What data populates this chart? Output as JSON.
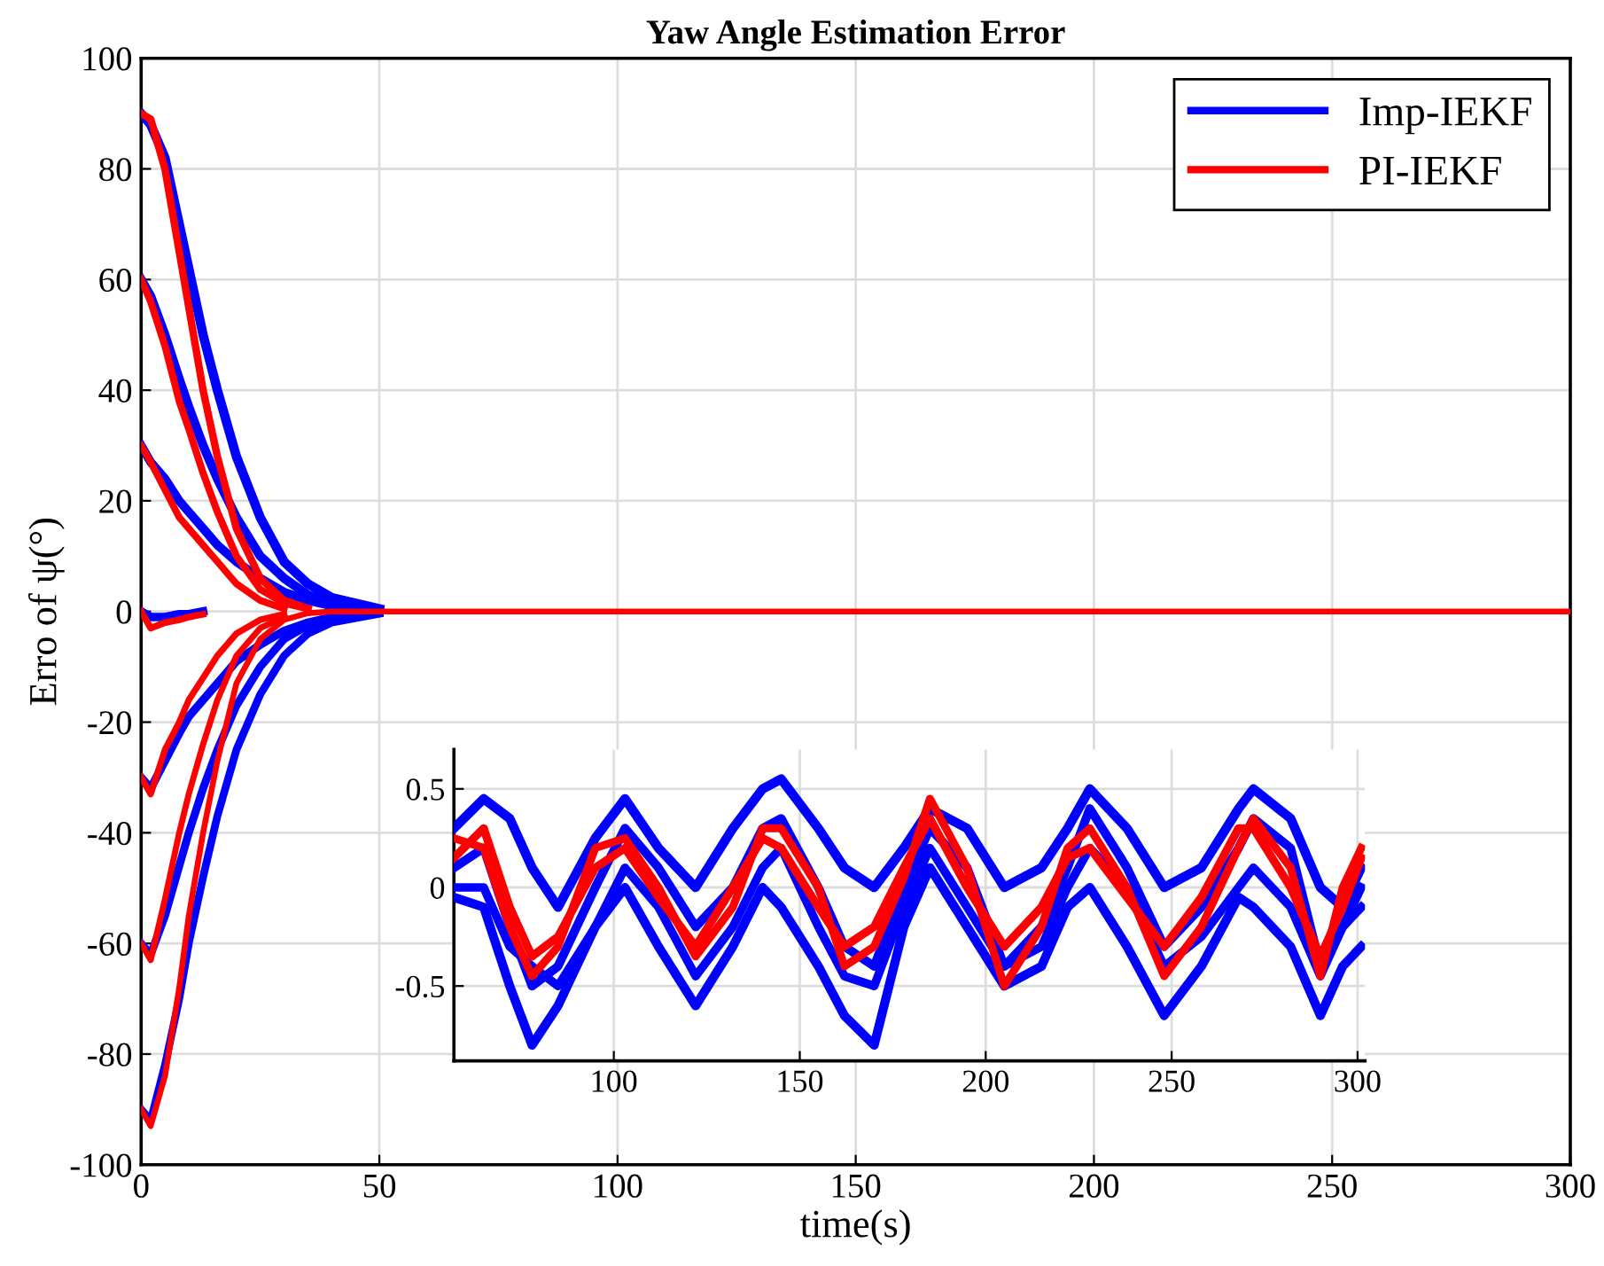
{
  "chart_data": [
    {
      "type": "line",
      "title": "Yaw Angle Estimation Error",
      "xlabel": "time(s)",
      "ylabel": "Erro of ψ(°)",
      "x": [
        0,
        2,
        5,
        8,
        10,
        13,
        16,
        20,
        25,
        30,
        35,
        40,
        50,
        60,
        100,
        150,
        200,
        250,
        300
      ],
      "xlim": [
        0,
        300
      ],
      "xticks": [
        0,
        50,
        100,
        150,
        200,
        250,
        300
      ],
      "ylim": [
        -100,
        100
      ],
      "yticks": [
        -100,
        -80,
        -60,
        -40,
        -20,
        0,
        20,
        40,
        60,
        80,
        100
      ],
      "grid": true,
      "legend": "top right",
      "line_style": "solid",
      "marker": "none",
      "series": [
        {
          "name": "Imp-IEKF",
          "color": "#0000ff",
          "values": [
            90,
            88,
            82,
            70,
            62,
            50,
            40,
            28,
            17,
            9,
            5,
            2.5,
            0.5,
            null,
            null,
            null,
            null,
            null,
            null
          ]
        },
        {
          "color": "#0000ff",
          "values": [
            60,
            57,
            50,
            42,
            37,
            30,
            24,
            17,
            10,
            6,
            3,
            1.5,
            0.3,
            null,
            null,
            null,
            null,
            null,
            null
          ]
        },
        {
          "color": "#0000ff",
          "values": [
            30,
            27,
            24,
            20,
            18,
            15,
            12,
            9,
            6,
            3.5,
            2,
            1,
            0.2,
            null,
            null,
            null,
            null,
            null,
            null
          ]
        },
        {
          "color": "#0000ff",
          "values": [
            0,
            -1,
            -1,
            -0.5,
            -0.5,
            0,
            null,
            null,
            null,
            null,
            null,
            null,
            null,
            null,
            null,
            null,
            null,
            null,
            null
          ]
        },
        {
          "color": "#0000ff",
          "values": [
            -30,
            -32,
            -27,
            -22,
            -19,
            -16,
            -13,
            -9,
            -6,
            -3.5,
            -2,
            -1,
            -0.2,
            null,
            null,
            null,
            null,
            null,
            null
          ]
        },
        {
          "color": "#0000ff",
          "values": [
            -60,
            -62,
            -55,
            -46,
            -40,
            -32,
            -25,
            -17,
            -10,
            -5,
            -2.5,
            -1.2,
            -0.2,
            null,
            null,
            null,
            null,
            null,
            null
          ]
        },
        {
          "color": "#0000ff",
          "values": [
            -90,
            -92,
            -82,
            -70,
            -60,
            -48,
            -37,
            -25,
            -15,
            -8,
            -4,
            -2,
            -0.4,
            null,
            null,
            null,
            null,
            null,
            null
          ]
        },
        {
          "name": "PI-IEKF",
          "color": "#ff0000",
          "values": [
            90,
            89,
            80,
            65,
            55,
            40,
            28,
            15,
            6,
            2,
            0.5,
            null,
            null,
            null,
            null,
            null,
            null,
            null,
            null
          ]
        },
        {
          "color": "#ff0000",
          "values": [
            60,
            56,
            48,
            38,
            33,
            25,
            18,
            10,
            4,
            1.5,
            0.5,
            null,
            null,
            null,
            null,
            null,
            null,
            null,
            null
          ]
        },
        {
          "color": "#ff0000",
          "values": [
            30,
            27,
            22,
            17,
            15,
            12,
            9,
            5,
            2,
            0.5,
            null,
            null,
            null,
            null,
            null,
            null,
            null,
            null,
            null
          ]
        },
        {
          "color": "#ff0000",
          "values": [
            0,
            -3,
            -2,
            -1.5,
            -1,
            -0.5,
            null,
            null,
            null,
            null,
            null,
            null,
            null,
            null,
            null,
            null,
            null,
            null,
            null
          ]
        },
        {
          "color": "#ff0000",
          "values": [
            -30,
            -33,
            -25,
            -20,
            -16,
            -12,
            -8,
            -4,
            -1.5,
            -0.5,
            null,
            null,
            null,
            null,
            null,
            null,
            null,
            null,
            null
          ]
        },
        {
          "color": "#ff0000",
          "values": [
            -60,
            -63,
            -52,
            -40,
            -33,
            -24,
            -16,
            -8,
            -3,
            -1,
            null,
            null,
            null,
            null,
            null,
            null,
            null,
            null,
            null
          ]
        },
        {
          "color": "#ff0000",
          "values": [
            -90,
            -93,
            -84,
            -68,
            -55,
            -40,
            -27,
            -13,
            -5,
            -1.5,
            -0.3,
            0,
            0,
            0,
            0,
            0,
            0,
            0,
            0
          ]
        }
      ]
    },
    {
      "type": "line",
      "x": [
        57,
        65,
        72,
        78,
        85,
        95,
        103,
        112,
        122,
        132,
        140,
        145,
        155,
        162,
        170,
        178,
        185,
        195,
        205,
        215,
        222,
        228,
        238,
        248,
        258,
        268,
        272,
        282,
        290,
        296,
        301
      ],
      "xlim": [
        57,
        302
      ],
      "xticks": [
        100,
        150,
        200,
        250,
        300
      ],
      "ylim": [
        -0.88,
        0.7
      ],
      "yticks": [
        -0.5,
        0,
        0.5
      ],
      "grid": true,
      "line_style": "solid",
      "marker": "none",
      "series": [
        {
          "color": "#0000ff",
          "values": [
            0.3,
            0.45,
            0.35,
            0.1,
            -0.1,
            0.25,
            0.45,
            0.2,
            0,
            0.3,
            0.5,
            0.55,
            0.3,
            0.1,
            0,
            0.2,
            0.4,
            0.3,
            0,
            0.1,
            0.3,
            0.5,
            0.3,
            0,
            0.1,
            0.4,
            0.5,
            0.35,
            0,
            -0.1,
            0.1
          ]
        },
        {
          "color": "#0000ff",
          "values": [
            -0.05,
            -0.1,
            -0.5,
            -0.8,
            -0.6,
            -0.2,
            0,
            -0.3,
            -0.6,
            -0.3,
            0,
            -0.1,
            -0.4,
            -0.65,
            -0.8,
            -0.2,
            0.1,
            -0.2,
            -0.5,
            -0.4,
            -0.1,
            0,
            -0.3,
            -0.65,
            -0.4,
            -0.05,
            -0.1,
            -0.3,
            -0.65,
            -0.4,
            -0.3
          ]
        },
        {
          "color": "#0000ff",
          "values": [
            0.1,
            0.2,
            -0.2,
            -0.5,
            -0.4,
            0,
            0.3,
            0.1,
            -0.2,
            0,
            0.3,
            0.35,
            0,
            -0.3,
            -0.4,
            0,
            0.3,
            0.1,
            -0.4,
            -0.2,
            0.1,
            0.4,
            0.1,
            -0.3,
            -0.1,
            0.2,
            0.35,
            0.2,
            -0.4,
            -0.2,
            -0.1
          ]
        },
        {
          "color": "#0000ff",
          "values": [
            0,
            0,
            -0.3,
            -0.4,
            -0.5,
            -0.2,
            0.1,
            -0.1,
            -0.45,
            -0.2,
            0.1,
            0.2,
            -0.2,
            -0.45,
            -0.5,
            -0.1,
            0.2,
            -0.1,
            -0.4,
            -0.3,
            0,
            0.2,
            0,
            -0.4,
            -0.25,
            0,
            0.1,
            -0.1,
            -0.45,
            -0.2,
            0
          ]
        },
        {
          "color": "#ff0000",
          "values": [
            0.15,
            0.3,
            -0.1,
            -0.35,
            -0.25,
            0.1,
            0.2,
            -0.05,
            -0.3,
            0,
            0.25,
            0.2,
            -0.1,
            -0.3,
            -0.2,
            0.1,
            0.35,
            0,
            -0.3,
            -0.1,
            0.15,
            0.2,
            -0.05,
            -0.3,
            -0.05,
            0.3,
            0.3,
            0,
            -0.35,
            -0.1,
            0.15
          ]
        },
        {
          "color": "#ff0000",
          "values": [
            0.25,
            0.2,
            -0.2,
            -0.45,
            -0.3,
            0.2,
            0.25,
            0,
            -0.35,
            -0.1,
            0.3,
            0.3,
            0,
            -0.4,
            -0.3,
            0.05,
            0.45,
            0.1,
            -0.5,
            -0.2,
            0.2,
            0.3,
            0,
            -0.45,
            -0.2,
            0.2,
            0.35,
            0.1,
            -0.45,
            0,
            0.2
          ]
        }
      ]
    }
  ]
}
